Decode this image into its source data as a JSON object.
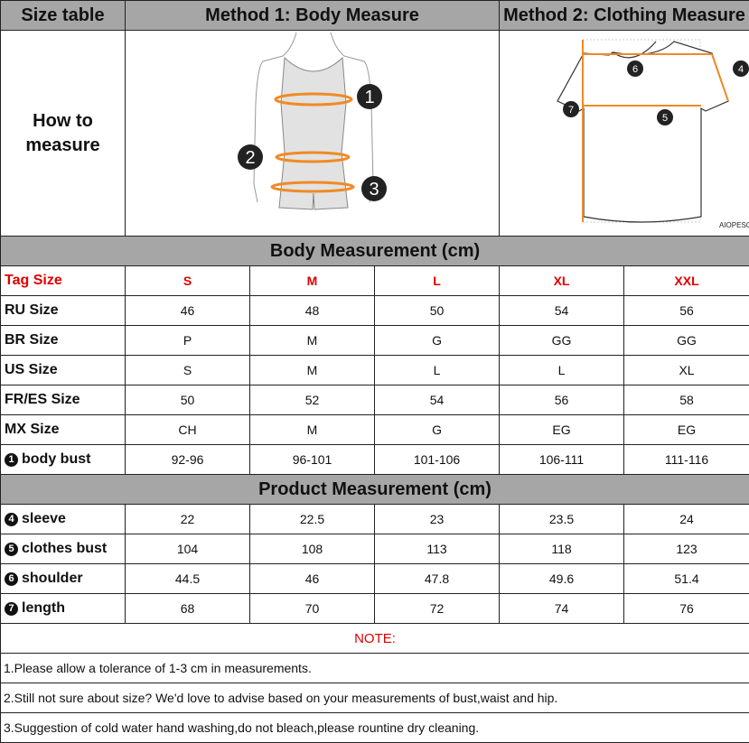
{
  "header": {
    "col1": "Size table",
    "col2": "Method 1: Body  Measure",
    "col3": "Method 2: Clothing Measure"
  },
  "how_to": {
    "line1": "How to",
    "line2": "measure"
  },
  "body_figure": {
    "markers": [
      "1",
      "2",
      "3"
    ]
  },
  "shirt_figure": {
    "markers": [
      "4",
      "5",
      "6",
      "7"
    ],
    "brand": "AIOPESON"
  },
  "colors": {
    "accent_red": "#e00000",
    "measure_orange": "#f08a24",
    "band_gray": "#a6a6a6"
  },
  "body_section": {
    "title": "Body Measurement (cm)"
  },
  "tag_row": {
    "label": "Tag Size",
    "values": [
      "S",
      "M",
      "L",
      "XL",
      "XXL"
    ]
  },
  "body_rows": [
    {
      "label": "RU Size",
      "values": [
        "46",
        "48",
        "50",
        "54",
        "56"
      ]
    },
    {
      "label": "BR Size",
      "values": [
        "P",
        "M",
        "G",
        "GG",
        "GG"
      ]
    },
    {
      "label": "US Size",
      "values": [
        "S",
        "M",
        "L",
        "L",
        "XL"
      ]
    },
    {
      "label": "FR/ES Size",
      "values": [
        "50",
        "52",
        "54",
        "56",
        "58"
      ]
    },
    {
      "label": "MX Size",
      "values": [
        "CH",
        "M",
        "G",
        "EG",
        "EG"
      ]
    },
    {
      "marker": "1",
      "label": "body bust",
      "values": [
        "92-96",
        "96-101",
        "101-106",
        "106-111",
        "111-116"
      ]
    }
  ],
  "product_section": {
    "title": "Product Measurement (cm)"
  },
  "product_rows": [
    {
      "marker": "4",
      "label": "sleeve",
      "values": [
        "22",
        "22.5",
        "23",
        "23.5",
        "24"
      ]
    },
    {
      "marker": "5",
      "label": "clothes bust",
      "values": [
        "104",
        "108",
        "113",
        "118",
        "123"
      ]
    },
    {
      "marker": "6",
      "label": "shoulder",
      "values": [
        "44.5",
        "46",
        "47.8",
        "49.6",
        "51.4"
      ]
    },
    {
      "marker": "7",
      "label": "length",
      "values": [
        "68",
        "70",
        "72",
        "74",
        "76"
      ]
    }
  ],
  "notes": {
    "title": "NOTE:",
    "items": [
      "1.Please allow a tolerance of 1-3 cm in measurements.",
      "2.Still not sure about size? We'd love to advise based on your measurements of bust,waist and hip.",
      "3.Suggestion of cold water hand washing,do not bleach,please rountine dry cleaning."
    ]
  }
}
